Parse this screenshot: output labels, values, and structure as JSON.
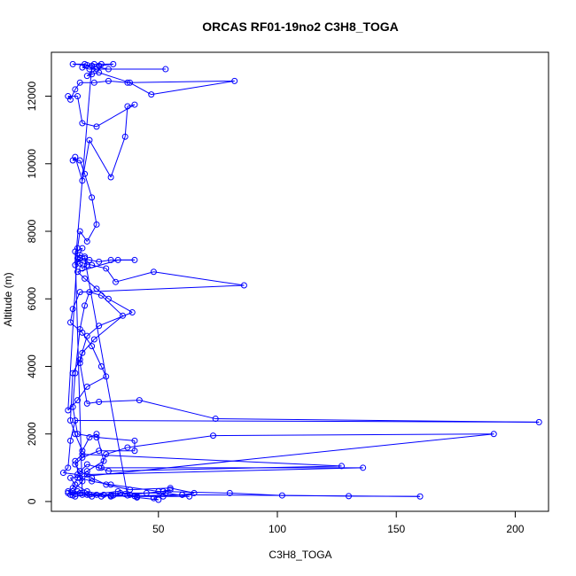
{
  "chart_data": {
    "type": "scatter",
    "title": "ORCAS RF01-19no2 C3H8_TOGA",
    "xlabel": "C3H8_TOGA",
    "ylabel": "Altitude (m)",
    "xlim": [
      5,
      214
    ],
    "ylim": [
      -290,
      13300
    ],
    "xticks": [
      50,
      100,
      150,
      200
    ],
    "yticks": [
      0,
      2000,
      4000,
      6000,
      8000,
      10000,
      12000
    ],
    "grid": false,
    "legend": "none",
    "series": [
      {
        "color": "#0000ff",
        "marker": "open-circle",
        "connected": true,
        "points": [
          [
            13,
            200
          ],
          [
            14,
            180
          ],
          [
            15,
            220
          ],
          [
            16,
            300
          ],
          [
            18,
            250
          ],
          [
            24,
            200
          ],
          [
            30,
            180
          ],
          [
            40,
            160
          ],
          [
            52,
            150
          ],
          [
            60,
            200
          ],
          [
            65,
            250
          ],
          [
            55,
            400
          ],
          [
            38,
            350
          ],
          [
            28,
            500
          ],
          [
            22,
            700
          ],
          [
            17,
            900
          ],
          [
            15,
            1100
          ],
          [
            18,
            1300
          ],
          [
            25,
            1500
          ],
          [
            40,
            1500
          ],
          [
            40,
            1800
          ],
          [
            24,
            1900
          ],
          [
            16,
            2000
          ],
          [
            14,
            2800
          ],
          [
            15,
            3800
          ],
          [
            17,
            5100
          ],
          [
            19,
            5800
          ],
          [
            21,
            6200
          ],
          [
            26,
            6100
          ],
          [
            35,
            5500
          ],
          [
            23,
            4800
          ],
          [
            18,
            4400
          ],
          [
            17,
            4100
          ],
          [
            20,
            2900
          ],
          [
            25,
            2950
          ],
          [
            42,
            3000
          ],
          [
            74,
            2450
          ],
          [
            210,
            2350
          ],
          [
            15,
            2400
          ],
          [
            13,
            1800
          ],
          [
            12,
            1000
          ],
          [
            10,
            850
          ],
          [
            16,
            800
          ],
          [
            20,
            1100
          ],
          [
            25,
            1000
          ],
          [
            29,
            900
          ],
          [
            127,
            1050
          ],
          [
            18,
            1400
          ],
          [
            15,
            1200
          ],
          [
            17,
            700
          ],
          [
            22,
            600
          ],
          [
            30,
            500
          ],
          [
            50,
            300
          ],
          [
            80,
            250
          ],
          [
            102,
            180
          ],
          [
            130,
            160
          ],
          [
            160,
            150
          ],
          [
            60,
            200
          ],
          [
            30,
            150
          ],
          [
            20,
            300
          ],
          [
            15,
            500
          ],
          [
            13,
            700
          ],
          [
            191,
            2000
          ],
          [
            73,
            1950
          ],
          [
            37,
            1600
          ],
          [
            28,
            1400
          ],
          [
            26,
            1000
          ],
          [
            136,
            1000
          ],
          [
            20,
            800
          ],
          [
            18,
            600
          ],
          [
            14,
            300
          ],
          [
            12,
            250
          ],
          [
            15,
            150
          ],
          [
            20,
            200
          ],
          [
            33,
            300
          ],
          [
            38,
            200
          ],
          [
            45,
            250
          ],
          [
            52,
            300
          ],
          [
            55,
            350
          ],
          [
            48,
            100
          ],
          [
            50,
            50
          ],
          [
            41,
            120
          ],
          [
            37,
            180
          ],
          [
            19,
            7200
          ],
          [
            16,
            7100
          ],
          [
            22,
            7000
          ],
          [
            28,
            6900
          ],
          [
            32,
            6500
          ],
          [
            48,
            6800
          ],
          [
            86,
            6400
          ],
          [
            17,
            6200
          ],
          [
            14,
            5700
          ],
          [
            13,
            5300
          ],
          [
            18,
            5000
          ],
          [
            22,
            4600
          ],
          [
            26,
            4000
          ],
          [
            28,
            3700
          ],
          [
            20,
            3400
          ],
          [
            16,
            3000
          ],
          [
            12,
            2700
          ],
          [
            16,
            7500
          ],
          [
            17,
            8000
          ],
          [
            20,
            7700
          ],
          [
            24,
            8200
          ],
          [
            22,
            9000
          ],
          [
            19,
            9700
          ],
          [
            17,
            10100
          ],
          [
            14,
            10100
          ],
          [
            15,
            10200
          ],
          [
            18,
            9500
          ],
          [
            21,
            10700
          ],
          [
            30,
            9600
          ],
          [
            36,
            10800
          ],
          [
            37,
            11700
          ],
          [
            40,
            11750
          ],
          [
            24,
            11100
          ],
          [
            18,
            11200
          ],
          [
            16,
            12000
          ],
          [
            12,
            12000
          ],
          [
            13,
            11900
          ],
          [
            15,
            12200
          ],
          [
            17,
            12400
          ],
          [
            23,
            12400
          ],
          [
            29,
            12450
          ],
          [
            37,
            12400
          ],
          [
            82,
            12450
          ],
          [
            47,
            12050
          ],
          [
            38,
            12400
          ],
          [
            25,
            12700
          ],
          [
            22,
            12650
          ],
          [
            20,
            12600
          ],
          [
            24,
            12800
          ],
          [
            19,
            12950
          ],
          [
            14,
            12950
          ],
          [
            20,
            12920
          ],
          [
            26,
            12950
          ],
          [
            31,
            12950
          ],
          [
            25,
            12900
          ],
          [
            23,
            12950
          ],
          [
            18,
            12850
          ],
          [
            21,
            12800
          ],
          [
            53,
            12800
          ],
          [
            29,
            12800
          ],
          [
            22,
            12900
          ],
          [
            15,
            7000
          ],
          [
            17,
            7200
          ],
          [
            21,
            7150
          ],
          [
            25,
            7100
          ],
          [
            30,
            7150
          ],
          [
            40,
            7150
          ],
          [
            33,
            7150
          ],
          [
            16,
            6800
          ],
          [
            19,
            6600
          ],
          [
            24,
            6300
          ],
          [
            29,
            6000
          ],
          [
            39,
            5600
          ],
          [
            25,
            5200
          ],
          [
            20,
            4900
          ],
          [
            17,
            4200
          ],
          [
            14,
            3800
          ],
          [
            13,
            2400
          ],
          [
            15,
            2000
          ],
          [
            18,
            1500
          ],
          [
            21,
            1900
          ],
          [
            24,
            2000
          ],
          [
            27,
            1200
          ],
          [
            20,
            900
          ],
          [
            16,
            700
          ],
          [
            14,
            400
          ],
          [
            12,
            300
          ],
          [
            17,
            250
          ],
          [
            21,
            200
          ],
          [
            26,
            150
          ],
          [
            31,
            180
          ],
          [
            36,
            220
          ],
          [
            41,
            150
          ],
          [
            63,
            150
          ],
          [
            53,
            250
          ],
          [
            34,
            250
          ],
          [
            27,
            200
          ],
          [
            22,
            150
          ],
          [
            18,
            200
          ],
          [
            15,
            7400
          ],
          [
            18,
            7500
          ],
          [
            16,
            7200
          ],
          [
            17,
            7300
          ],
          [
            19,
            7250
          ],
          [
            20,
            7000
          ],
          [
            18,
            6900
          ],
          [
            17,
            7050
          ]
        ]
      }
    ]
  }
}
